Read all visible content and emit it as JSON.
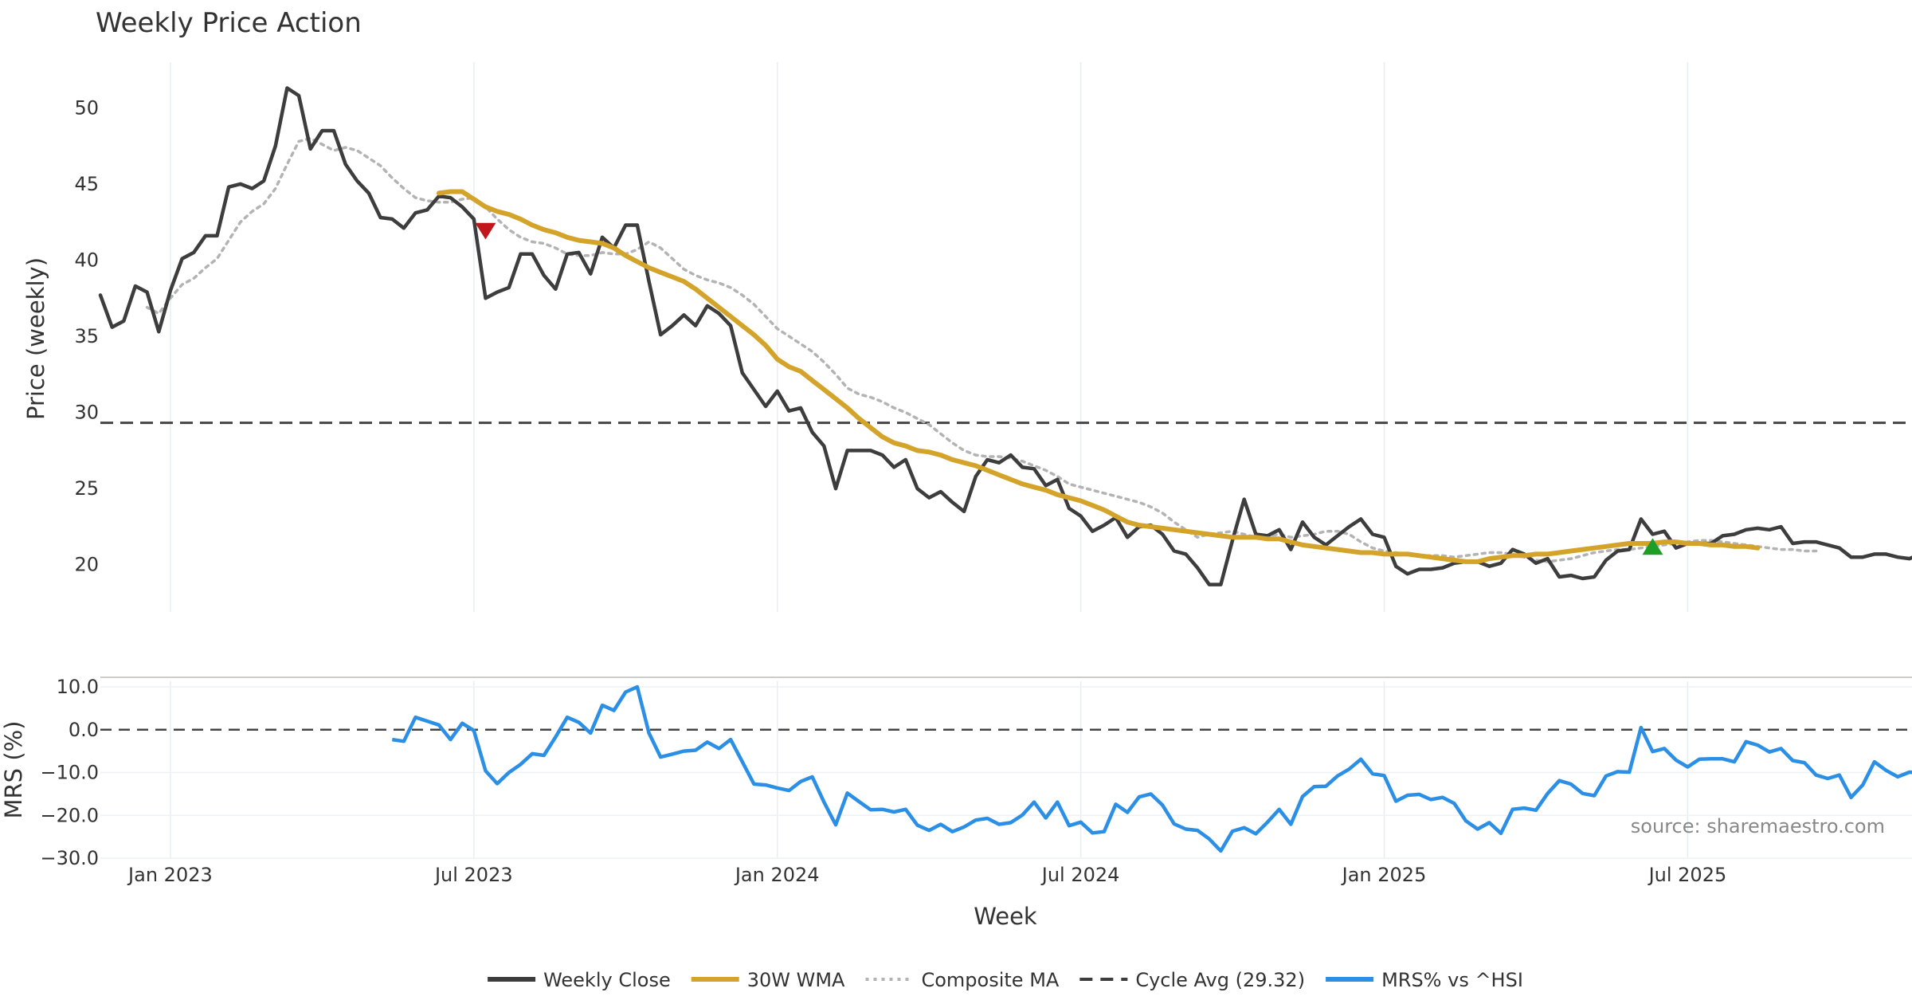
{
  "chart_data": {
    "type": "line",
    "title": "Weekly Price Action",
    "xlabel": "Week",
    "x_tick_labels": [
      "Jan 2023",
      "Jul 2023",
      "Jan 2024",
      "Jul 2024",
      "Jan 2025",
      "Jul 2025"
    ],
    "x_tick_weeks": [
      6,
      32,
      58,
      84,
      110,
      136
    ],
    "price_panel": {
      "ylabel": "Price (weekly)",
      "ylim": [
        16.9,
        53.0
      ],
      "y_ticks": [
        20,
        25,
        30,
        35,
        40,
        45,
        50
      ],
      "cycle_avg": 29.32,
      "series": [
        {
          "name": "Weekly Close",
          "color": "#3d3d3d",
          "start_week": 0,
          "values": [
            37.7,
            35.6,
            36.0,
            38.3,
            37.9,
            35.3,
            38.0,
            40.1,
            40.5,
            41.6,
            41.6,
            44.8,
            45.0,
            44.7,
            45.2,
            47.5,
            51.3,
            50.8,
            47.3,
            48.5,
            48.5,
            46.3,
            45.2,
            44.4,
            42.8,
            42.7,
            42.1,
            43.1,
            43.3,
            44.2,
            44.1,
            43.5,
            42.7,
            37.5,
            37.9,
            38.2,
            40.4,
            40.4,
            39.0,
            38.1,
            40.4,
            40.5,
            39.1,
            41.5,
            40.8,
            42.3,
            42.3,
            38.6,
            35.1,
            35.7,
            36.4,
            35.7,
            37.0,
            36.5,
            35.7,
            32.6,
            31.5,
            30.4,
            31.4,
            30.1,
            30.3,
            28.7,
            27.8,
            25.0,
            27.5,
            27.5,
            27.5,
            27.2,
            26.4,
            26.9,
            25.0,
            24.4,
            24.8,
            24.1,
            23.5,
            25.8,
            26.9,
            26.7,
            27.2,
            26.4,
            26.3,
            25.2,
            25.6,
            23.7,
            23.2,
            22.2,
            22.6,
            23.1,
            21.8,
            22.5,
            22.6,
            22.0,
            20.9,
            20.7,
            19.8,
            18.7,
            18.7,
            21.6,
            24.3,
            22.0,
            21.9,
            22.3,
            21.0,
            22.8,
            21.8,
            21.3,
            21.9,
            22.5,
            23.0,
            22.0,
            21.8,
            19.9,
            19.4,
            19.7,
            19.7,
            19.8,
            20.1,
            20.2,
            20.2,
            19.9,
            20.1,
            21.0,
            20.7,
            20.1,
            20.4,
            19.2,
            19.3,
            19.1,
            19.2,
            20.3,
            20.9,
            21.0,
            23.0,
            22.0,
            22.2,
            21.1,
            21.4,
            21.4,
            21.4,
            21.9,
            22.0,
            22.3,
            22.4,
            22.3,
            22.5,
            21.4,
            21.5,
            21.5,
            21.3,
            21.1,
            20.5,
            20.5,
            20.7,
            20.7,
            20.5,
            20.4,
            20.7
          ]
        },
        {
          "name": "30W WMA",
          "color": "#d4a42a",
          "start_week": 29,
          "values": [
            44.4,
            44.5,
            44.5,
            44.0,
            43.5,
            43.2,
            43.0,
            42.7,
            42.3,
            42.0,
            41.8,
            41.5,
            41.3,
            41.2,
            41.1,
            40.8,
            40.3,
            39.9,
            39.5,
            39.2,
            38.9,
            38.6,
            38.1,
            37.5,
            36.9,
            36.3,
            35.7,
            35.1,
            34.4,
            33.5,
            33.0,
            32.7,
            32.1,
            31.5,
            30.9,
            30.3,
            29.6,
            29.0,
            28.4,
            28.0,
            27.8,
            27.5,
            27.4,
            27.2,
            26.9,
            26.7,
            26.5,
            26.2,
            25.9,
            25.6,
            25.3,
            25.1,
            24.9,
            24.6,
            24.4,
            24.2,
            23.9,
            23.6,
            23.2,
            22.8,
            22.6,
            22.5,
            22.4,
            22.3,
            22.2,
            22.1,
            22.0,
            21.9,
            21.8,
            21.8,
            21.8,
            21.7,
            21.7,
            21.5,
            21.3,
            21.2,
            21.1,
            21.0,
            20.9,
            20.8,
            20.8,
            20.7,
            20.7,
            20.7,
            20.6,
            20.5,
            20.4,
            20.3,
            20.2,
            20.2,
            20.4,
            20.5,
            20.6,
            20.6,
            20.7,
            20.7,
            20.8,
            20.9,
            21.0,
            21.1,
            21.2,
            21.3,
            21.4,
            21.4,
            21.4,
            21.5,
            21.5,
            21.4,
            21.4,
            21.3,
            21.3,
            21.2,
            21.2,
            21.1
          ]
        },
        {
          "name": "Composite MA",
          "color": "#b3b3b3",
          "start_week": 4,
          "values": [
            36.9,
            36.5,
            37.5,
            38.4,
            38.8,
            39.5,
            40.1,
            41.3,
            42.5,
            43.2,
            43.7,
            44.7,
            46.3,
            47.8,
            48.0,
            47.6,
            47.2,
            47.4,
            47.2,
            46.7,
            46.2,
            45.4,
            44.7,
            44.1,
            43.9,
            43.8,
            43.8,
            44.0,
            44.1,
            43.5,
            42.7,
            42.0,
            41.5,
            41.2,
            41.1,
            40.8,
            40.4,
            40.3,
            40.3,
            40.5,
            40.4,
            40.4,
            40.7,
            41.2,
            40.8,
            40.1,
            39.4,
            39.0,
            38.7,
            38.5,
            38.2,
            37.7,
            37.1,
            36.3,
            35.5,
            35.0,
            34.5,
            34.0,
            33.3,
            32.5,
            31.6,
            31.2,
            31.0,
            30.7,
            30.3,
            30.0,
            29.6,
            29.2,
            28.6,
            28.0,
            27.5,
            27.2,
            27.1,
            27.1,
            27.0,
            26.8,
            26.5,
            26.2,
            25.8,
            25.3,
            25.1,
            24.9,
            24.7,
            24.5,
            24.3,
            24.1,
            23.8,
            23.4,
            22.8,
            22.3,
            21.8,
            22.0,
            22.1,
            22.2,
            22.0,
            21.8,
            21.9,
            22.0,
            21.8,
            21.9,
            22.0,
            22.2,
            22.2,
            22.0,
            21.5,
            21.1,
            20.9,
            20.8,
            20.7,
            20.6,
            20.6,
            20.6,
            20.5,
            20.6,
            20.7,
            20.8,
            20.8,
            20.7,
            20.5,
            20.3,
            20.2,
            20.3,
            20.4,
            20.6,
            20.8,
            20.9,
            21.0,
            21.0,
            21.1,
            21.2,
            21.3,
            21.4,
            21.5,
            21.6,
            21.6,
            21.5,
            21.4,
            21.3,
            21.2,
            21.1,
            21.0,
            21.0,
            20.9,
            20.9
          ]
        }
      ],
      "markers": [
        {
          "type": "sell",
          "shape": "down-triangle",
          "color": "#c0161c",
          "week": 33,
          "value": 41.9
        },
        {
          "type": "buy",
          "shape": "up-triangle",
          "color": "#1e9e25",
          "week": 133,
          "value": 21.2
        }
      ]
    },
    "mrs_panel": {
      "ylabel": "MRS (%)",
      "ylim": [
        -30.0,
        10.0
      ],
      "y_ticks": [
        10.0,
        0.0,
        -10.0,
        -20.0,
        -30.0
      ],
      "y_tick_labels": [
        "10.0",
        "0.0",
        "−10.0",
        "−20.0",
        "−30.0"
      ],
      "zero_line": 0.0,
      "series": {
        "name": "MRS% vs ^HSI",
        "color": "#2b8fe5",
        "start_week": 25,
        "values": [
          -2.3,
          -2.7,
          2.9,
          2.0,
          1.1,
          -2.3,
          1.5,
          -0.2,
          -9.6,
          -12.6,
          -10.0,
          -8.1,
          -5.6,
          -6.0,
          -1.7,
          2.9,
          1.7,
          -0.8,
          5.7,
          4.5,
          8.8,
          10.0,
          -0.8,
          -6.4,
          -5.7,
          -5.0,
          -4.8,
          -2.9,
          -4.4,
          -2.3,
          -7.5,
          -12.7,
          -12.9,
          -13.6,
          -14.2,
          -12.1,
          -11.0,
          -16.9,
          -22.2,
          -14.8,
          -16.8,
          -18.7,
          -18.6,
          -19.2,
          -18.6,
          -22.3,
          -23.5,
          -22.1,
          -23.8,
          -22.7,
          -21.1,
          -20.7,
          -22.1,
          -21.7,
          -19.9,
          -16.9,
          -20.6,
          -16.9,
          -22.4,
          -21.6,
          -24.1,
          -23.8,
          -17.4,
          -19.3,
          -15.7,
          -15.0,
          -17.6,
          -22.0,
          -23.2,
          -23.5,
          -25.5,
          -28.3,
          -23.7,
          -22.9,
          -24.3,
          -21.6,
          -18.6,
          -22.1,
          -15.6,
          -13.3,
          -13.2,
          -10.8,
          -9.2,
          -6.9,
          -10.3,
          -10.7,
          -16.7,
          -15.3,
          -15.1,
          -16.3,
          -15.8,
          -17.2,
          -21.3,
          -23.2,
          -21.7,
          -24.2,
          -18.6,
          -18.3,
          -18.8,
          -14.9,
          -11.9,
          -12.7,
          -14.9,
          -15.4,
          -10.8,
          -9.8,
          -9.9,
          0.5,
          -5.1,
          -4.4,
          -7.1,
          -8.7,
          -6.9,
          -6.8,
          -6.8,
          -7.5,
          -2.8,
          -3.6,
          -5.2,
          -4.4,
          -7.2,
          -7.7,
          -10.6,
          -11.4,
          -10.6,
          -15.8,
          -12.9,
          -7.5,
          -9.5,
          -11.0,
          -9.9,
          -10.1
        ]
      }
    },
    "legend": {
      "placement": "bottom-center",
      "items": [
        {
          "label": "Weekly Close",
          "color": "#3d3d3d",
          "style": "solid"
        },
        {
          "label": "30W WMA",
          "color": "#d4a42a",
          "style": "solid"
        },
        {
          "label": "Composite MA",
          "color": "#b3b3b3",
          "style": "dotted"
        },
        {
          "label": "Cycle Avg (29.32)",
          "color": "#3d3d3d",
          "style": "dashed"
        },
        {
          "label": "MRS% vs ^HSI",
          "color": "#2b8fe5",
          "style": "solid"
        }
      ]
    },
    "source_text": "source: sharemaestro.com"
  }
}
